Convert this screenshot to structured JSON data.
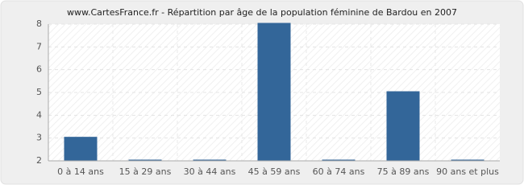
{
  "chart_data": {
    "type": "bar",
    "title": "www.CartesFrance.fr - Répartition par âge de la population féminine de Bardou en 2007",
    "categories": [
      "0 à 14 ans",
      "15 à 29 ans",
      "30 à 44 ans",
      "45 à 59 ans",
      "60 à 74 ans",
      "75 à 89 ans",
      "90 ans et plus"
    ],
    "values": [
      3,
      2,
      2,
      8,
      2,
      5,
      2
    ],
    "color": "#336699",
    "ylim": [
      2,
      8
    ],
    "yticks": [
      2,
      3,
      4,
      5,
      6,
      7,
      8
    ],
    "grid": true
  }
}
